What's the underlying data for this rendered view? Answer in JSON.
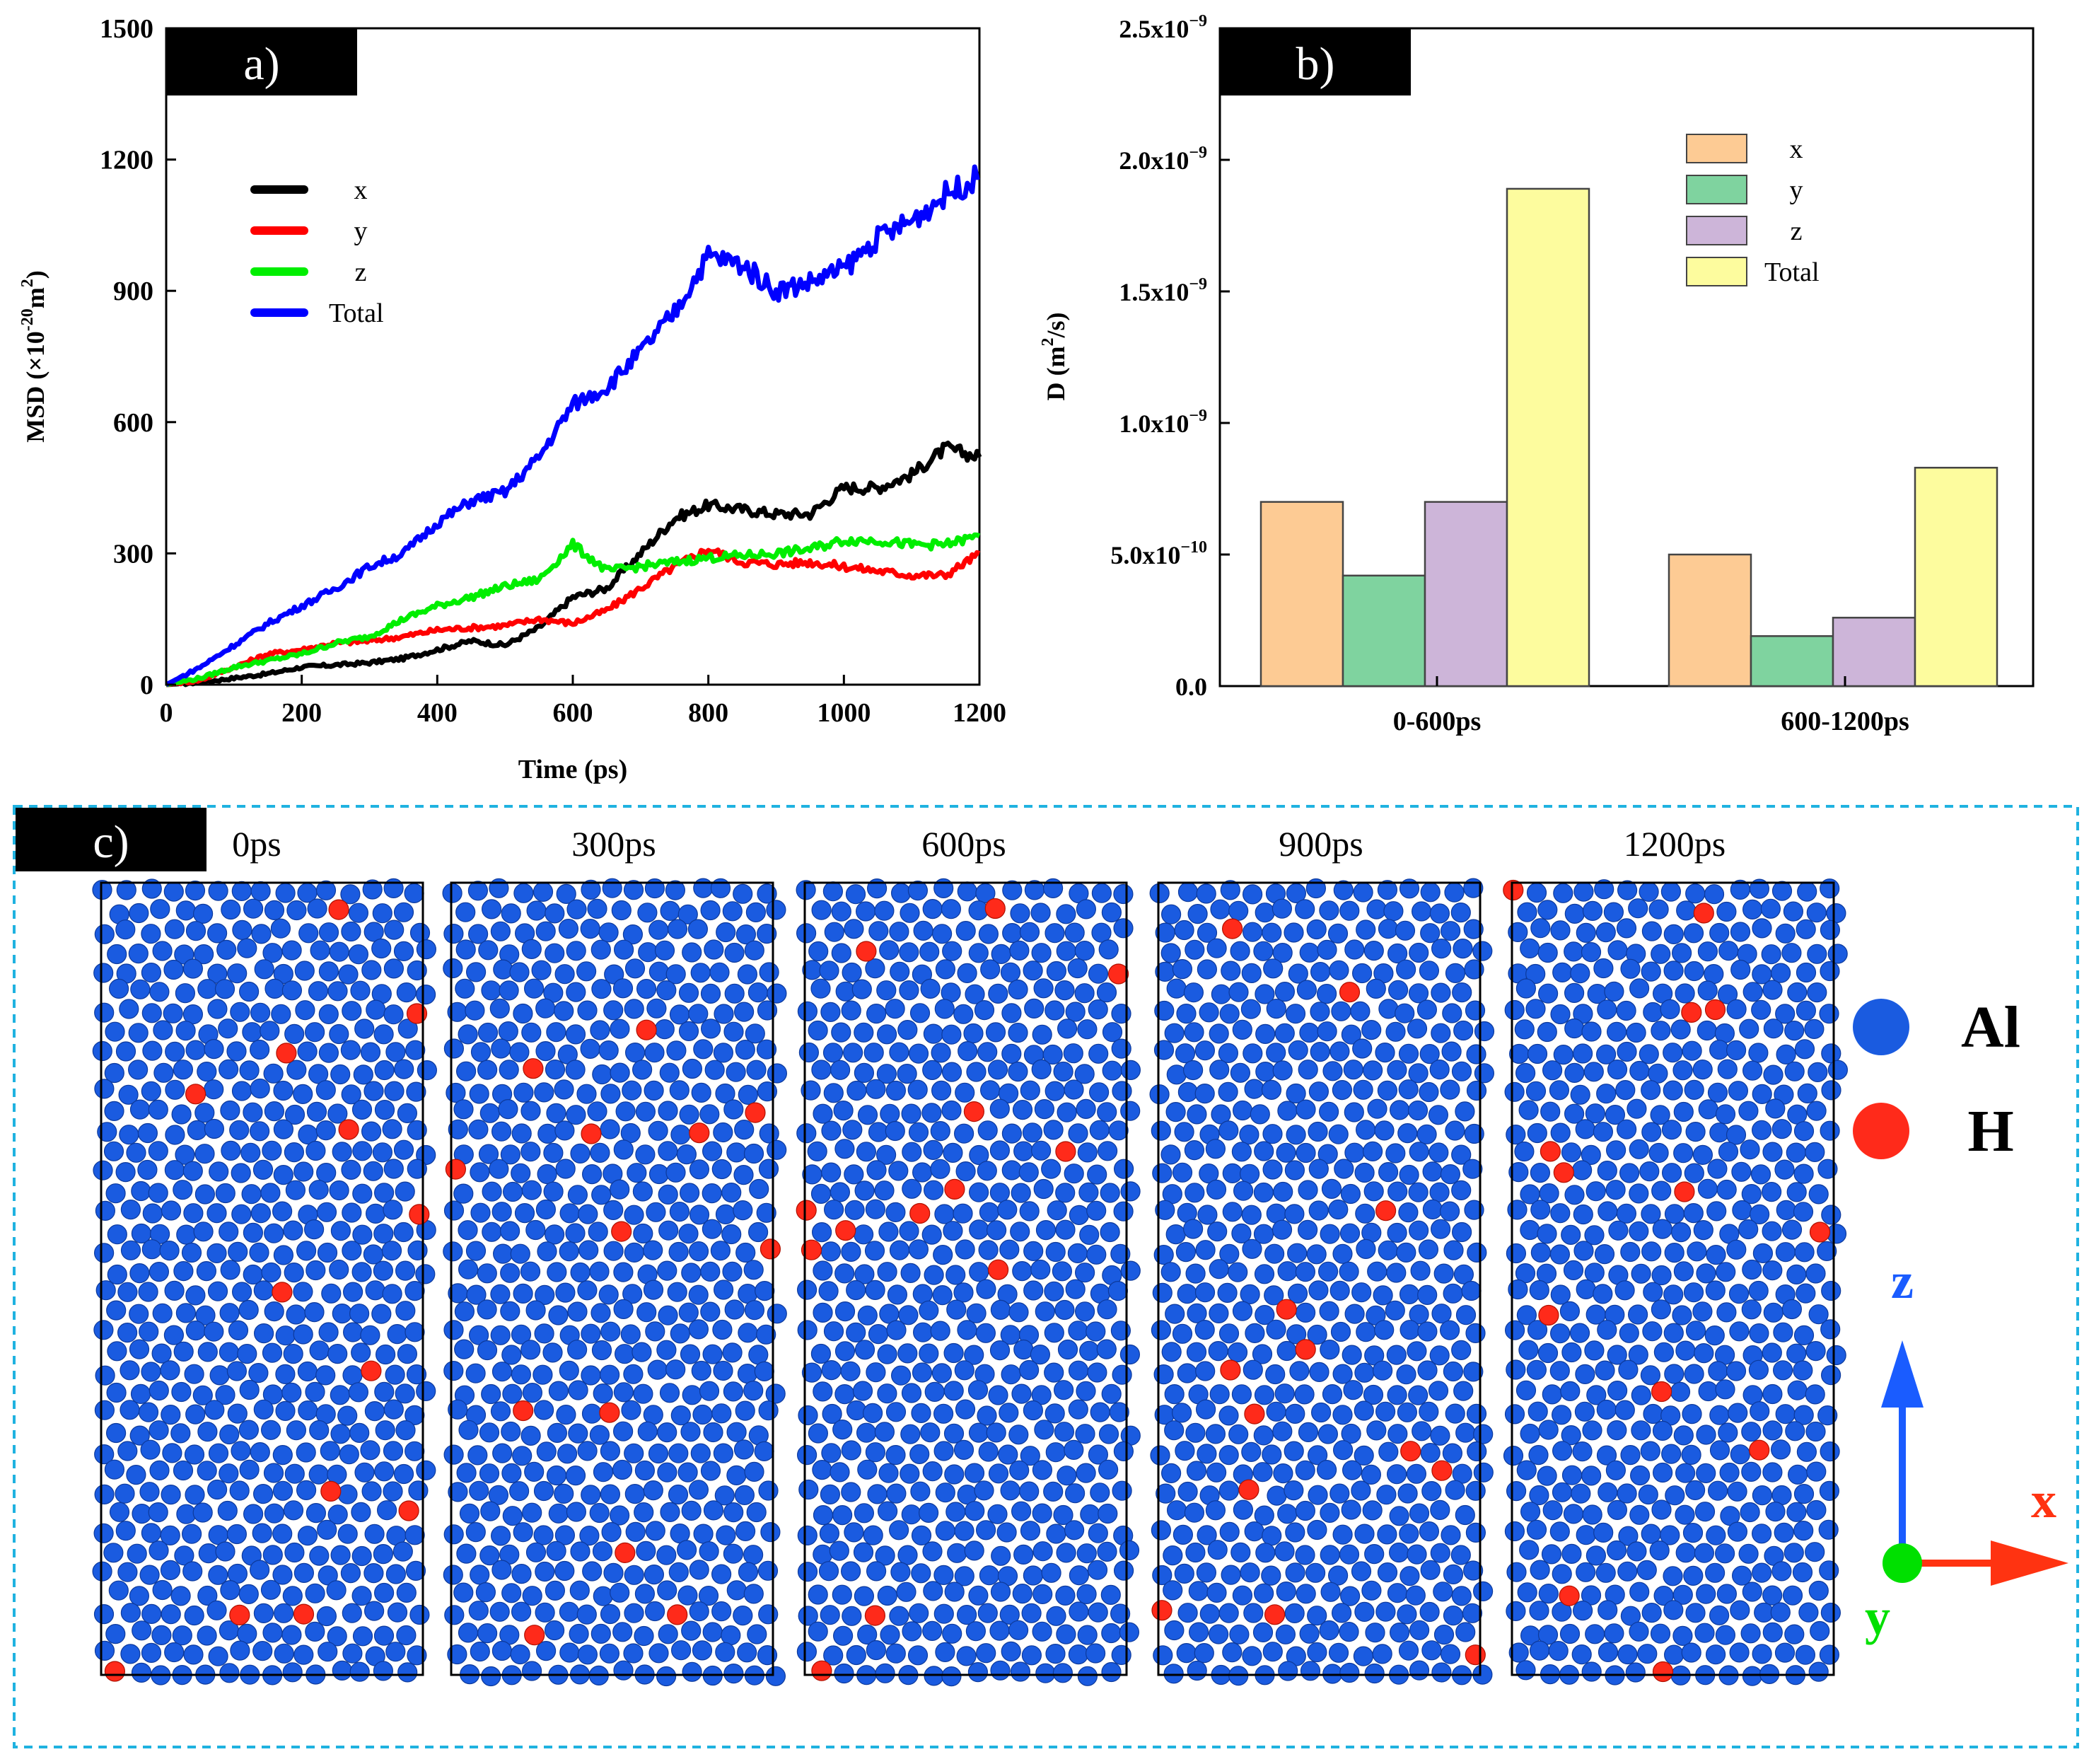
{
  "panels": {
    "a": {
      "tag": "a)"
    },
    "b": {
      "tag": "b)"
    },
    "c": {
      "tag": "c)"
    }
  },
  "chart_data": [
    {
      "id": "a",
      "type": "line",
      "title": "",
      "xlabel": "Time (ps)",
      "ylabel_main": "MSD (×10",
      "ylabel_exp": "-20",
      "ylabel_unit": "m",
      "ylabel_unit_exp": "2",
      "ylabel_tail": ")",
      "xlim": [
        0,
        1200
      ],
      "ylim": [
        0,
        1500
      ],
      "xticks": [
        0,
        200,
        400,
        600,
        800,
        1000,
        1200
      ],
      "yticks": [
        0,
        300,
        600,
        900,
        1200,
        1500
      ],
      "legend_position": "upper-left",
      "series": [
        {
          "name": "x",
          "color": "#000000",
          "x": [
            0,
            50,
            100,
            150,
            200,
            250,
            300,
            350,
            400,
            450,
            500,
            550,
            600,
            650,
            700,
            750,
            800,
            850,
            900,
            950,
            1000,
            1050,
            1100,
            1150,
            1200
          ],
          "y": [
            0,
            5,
            15,
            25,
            40,
            45,
            50,
            60,
            80,
            100,
            90,
            130,
            200,
            220,
            300,
            380,
            410,
            400,
            390,
            390,
            450,
            450,
            480,
            540,
            520
          ]
        },
        {
          "name": "y",
          "color": "#ff0000",
          "x": [
            0,
            50,
            100,
            150,
            200,
            250,
            300,
            350,
            400,
            450,
            500,
            550,
            600,
            650,
            700,
            750,
            800,
            850,
            900,
            950,
            1000,
            1050,
            1100,
            1150,
            1200
          ],
          "y": [
            0,
            10,
            40,
            70,
            80,
            95,
            100,
            110,
            125,
            130,
            135,
            150,
            140,
            170,
            220,
            270,
            310,
            280,
            275,
            280,
            270,
            260,
            250,
            250,
            300
          ]
        },
        {
          "name": "z",
          "color": "#00ee00",
          "x": [
            0,
            50,
            100,
            150,
            200,
            250,
            300,
            350,
            400,
            450,
            500,
            550,
            600,
            650,
            700,
            750,
            800,
            850,
            900,
            950,
            1000,
            1050,
            1100,
            1150,
            1200
          ],
          "y": [
            0,
            15,
            40,
            55,
            70,
            95,
            110,
            150,
            180,
            200,
            225,
            240,
            320,
            260,
            270,
            280,
            290,
            295,
            300,
            310,
            330,
            330,
            320,
            320,
            340
          ]
        },
        {
          "name": "Total",
          "color": "#0000ff",
          "x": [
            0,
            50,
            100,
            150,
            200,
            250,
            300,
            350,
            400,
            450,
            500,
            550,
            600,
            650,
            700,
            750,
            800,
            850,
            900,
            950,
            1000,
            1050,
            1100,
            1150,
            1200
          ],
          "y": [
            0,
            40,
            90,
            140,
            180,
            220,
            270,
            300,
            370,
            420,
            440,
            520,
            640,
            680,
            760,
            850,
            980,
            960,
            900,
            920,
            950,
            1020,
            1060,
            1120,
            1160
          ]
        }
      ]
    },
    {
      "id": "b",
      "type": "bar",
      "title": "",
      "xlabel": "",
      "ylabel_main": "D (m",
      "ylabel_exp": "2",
      "ylabel_tail": "/s)",
      "ylim": [
        0,
        2.5e-09
      ],
      "ytick_values": [
        0,
        5e-10,
        1e-09,
        1.5e-09,
        2e-09,
        2.5e-09
      ],
      "ytick_mantissa": [
        "0.0",
        "5.0x10",
        "1.0x10",
        "1.5x10",
        "2.0x10",
        "2.5x10"
      ],
      "ytick_exponent": [
        "",
        "−10",
        "−9",
        "−9",
        "−9",
        "−9"
      ],
      "categories": [
        "0-600ps",
        "600-1200ps"
      ],
      "legend_position": "upper-center",
      "series": [
        {
          "name": "x",
          "color": "#fdcb94",
          "values": [
            7e-10,
            5e-10
          ]
        },
        {
          "name": "y",
          "color": "#7fd39f",
          "values": [
            4.2e-10,
            1.9e-10
          ]
        },
        {
          "name": "z",
          "color": "#cdb5d9",
          "values": [
            7e-10,
            2.6e-10
          ]
        },
        {
          "name": "Total",
          "color": "#fdfc9e",
          "values": [
            1.89e-09,
            8.3e-10
          ]
        }
      ]
    }
  ],
  "snapshots": {
    "frames": [
      "0ps",
      "300ps",
      "600ps",
      "900ps",
      "1200ps"
    ],
    "legend": [
      {
        "label": "Al",
        "color": "#1a5be0"
      },
      {
        "label": "H",
        "color": "#ff2a1a"
      }
    ],
    "axes": {
      "z_label": "z",
      "z_color": "#1a5cff",
      "x_label": "x",
      "x_color": "#ff3311",
      "y_label": "y",
      "y_color": "#00e000"
    },
    "box_color": "#1fb2e0"
  }
}
